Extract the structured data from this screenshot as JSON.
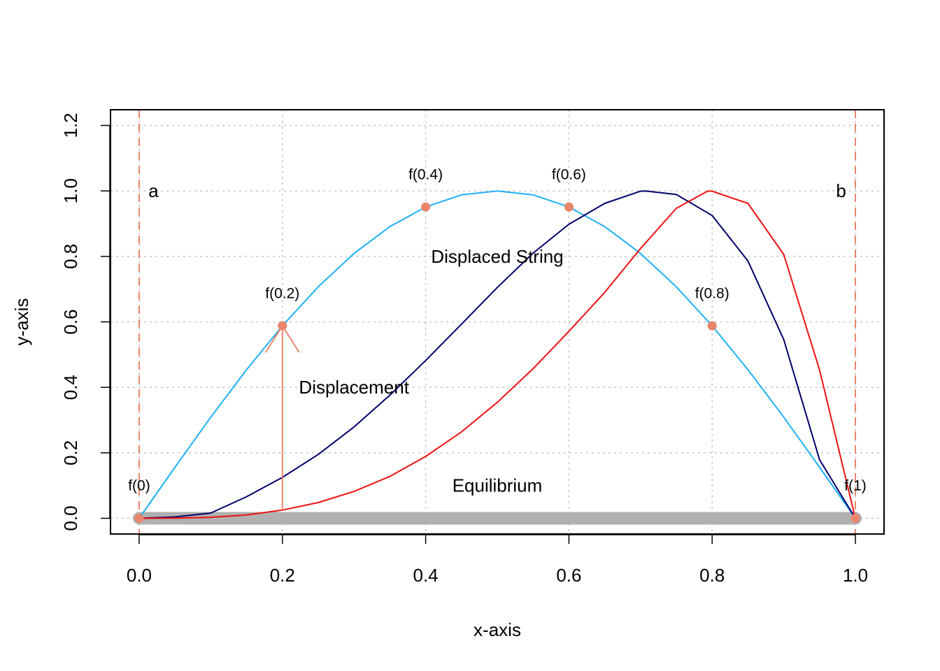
{
  "chart_data": {
    "type": "line",
    "xlabel": "x-axis",
    "ylabel": "y-axis",
    "xlim": [
      -0.04,
      1.04
    ],
    "ylim": [
      -0.048,
      1.248
    ],
    "x_ticks": [
      "0.0",
      "0.2",
      "0.4",
      "0.6",
      "0.8",
      "1.0"
    ],
    "y_ticks": [
      "0.0",
      "0.2",
      "0.4",
      "0.6",
      "0.8",
      "1.0",
      "1.2"
    ],
    "grid": true,
    "colors": {
      "displaced": "#1fb0f5",
      "navy_curve": "#00006b",
      "red_curve": "#ee1111",
      "equilibrium": "#b0b0b0",
      "marker": "#e8856a",
      "grid": "#c8c8c8"
    },
    "series": [
      {
        "x": [
          0,
          0.05,
          0.1,
          0.15,
          0.2,
          0.25,
          0.3,
          0.35,
          0.4,
          0.45,
          0.5,
          0.55,
          0.6,
          0.65,
          0.7,
          0.75,
          0.8,
          0.85,
          0.9,
          0.95,
          1.0
        ],
        "y": [
          0,
          0.156,
          0.309,
          0.454,
          0.588,
          0.707,
          0.809,
          0.891,
          0.951,
          0.988,
          1.0,
          0.988,
          0.951,
          0.891,
          0.809,
          0.707,
          0.588,
          0.454,
          0.309,
          0.156,
          0
        ],
        "color": "#1fb0f5"
      },
      {
        "x": [
          0,
          0.05,
          0.1,
          0.15,
          0.2,
          0.25,
          0.3,
          0.35,
          0.4,
          0.45,
          0.5,
          0.55,
          0.6,
          0.65,
          0.7,
          0.707,
          0.75,
          0.8,
          0.85,
          0.9,
          0.95,
          1.0
        ],
        "y": [
          0,
          0.004,
          0.016,
          0.066,
          0.125,
          0.195,
          0.279,
          0.376,
          0.482,
          0.593,
          0.705,
          0.81,
          0.898,
          0.962,
          0.999,
          1.0,
          0.989,
          0.925,
          0.786,
          0.546,
          0.179,
          0
        ],
        "color": "#00006b"
      },
      {
        "x": [
          0,
          0.05,
          0.1,
          0.15,
          0.2,
          0.25,
          0.3,
          0.35,
          0.4,
          0.45,
          0.5,
          0.55,
          0.6,
          0.65,
          0.7,
          0.75,
          0.794,
          0.8,
          0.85,
          0.9,
          0.95,
          1.0
        ],
        "y": [
          0,
          0.0004,
          0.003,
          0.01,
          0.025,
          0.048,
          0.082,
          0.128,
          0.189,
          0.264,
          0.354,
          0.457,
          0.571,
          0.69,
          0.824,
          0.947,
          1.0,
          0.999,
          0.962,
          0.806,
          0.453,
          0
        ],
        "color": "#ee1111"
      }
    ],
    "equilibrium": {
      "x": [
        0,
        1
      ],
      "y": [
        0,
        0
      ]
    },
    "vlines": {
      "x": [
        0,
        1
      ]
    },
    "points": [
      {
        "x": 0,
        "y": 0,
        "label": "f(0)"
      },
      {
        "x": 0.2,
        "y": 0.588,
        "label": "f(0.2)"
      },
      {
        "x": 0.4,
        "y": 0.951,
        "label": "f(0.4)"
      },
      {
        "x": 0.6,
        "y": 0.951,
        "label": "f(0.6)"
      },
      {
        "x": 0.8,
        "y": 0.588,
        "label": "f(0.8)"
      },
      {
        "x": 1.0,
        "y": 0,
        "label": "f(1)"
      }
    ],
    "arrow": {
      "x": 0.2,
      "y_from": 0.025,
      "y_to": 0.588
    },
    "annotations": [
      {
        "text": "a",
        "x": 0.02,
        "y": 1.0,
        "size": "big",
        "anchor": "middle"
      },
      {
        "text": "b",
        "x": 0.98,
        "y": 1.0,
        "size": "big",
        "anchor": "middle"
      },
      {
        "text": "Displaced String",
        "x": 0.5,
        "y": 0.8,
        "size": "big",
        "anchor": "middle"
      },
      {
        "text": "Displacement",
        "x": 0.3,
        "y": 0.4,
        "size": "big",
        "anchor": "middle"
      },
      {
        "text": "Equilibrium",
        "x": 0.5,
        "y": 0.1,
        "size": "big",
        "anchor": "middle"
      }
    ]
  }
}
